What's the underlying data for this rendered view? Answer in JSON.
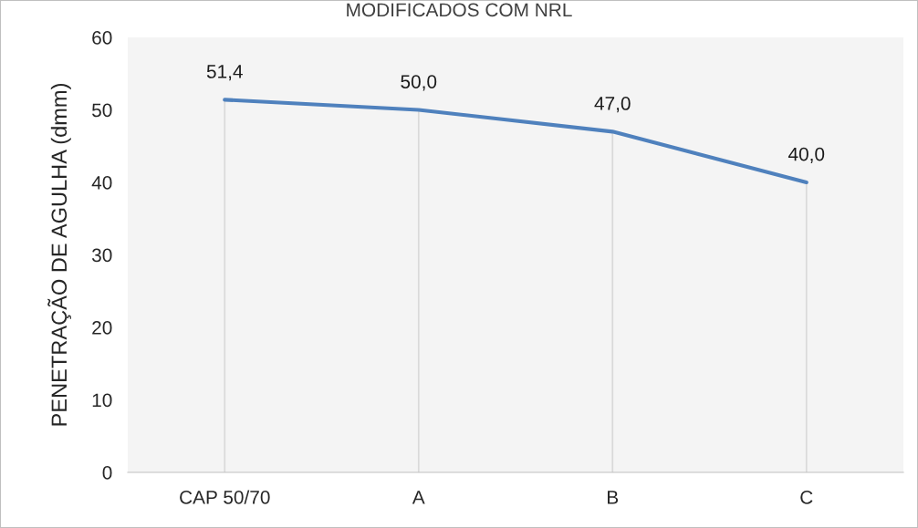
{
  "chart_data": {
    "type": "line",
    "title": "MODIFICADOS COM NRL",
    "ylabel": "PENETRAÇÃO DE AGULHA (dmm)",
    "categories": [
      "CAP 50/70",
      "A",
      "B",
      "C"
    ],
    "series": [
      {
        "color": "#4f81bd",
        "values": [
          51.4,
          50.0,
          47.0,
          40.0
        ],
        "value_labels": [
          "51,4",
          "50,0",
          "47,0",
          "40,0"
        ]
      }
    ],
    "ylim": [
      0,
      60
    ],
    "yticks": [
      0,
      10,
      20,
      30,
      40,
      50,
      60
    ],
    "grid": "x",
    "legend": false,
    "marker": "none",
    "line_style": "solid"
  }
}
